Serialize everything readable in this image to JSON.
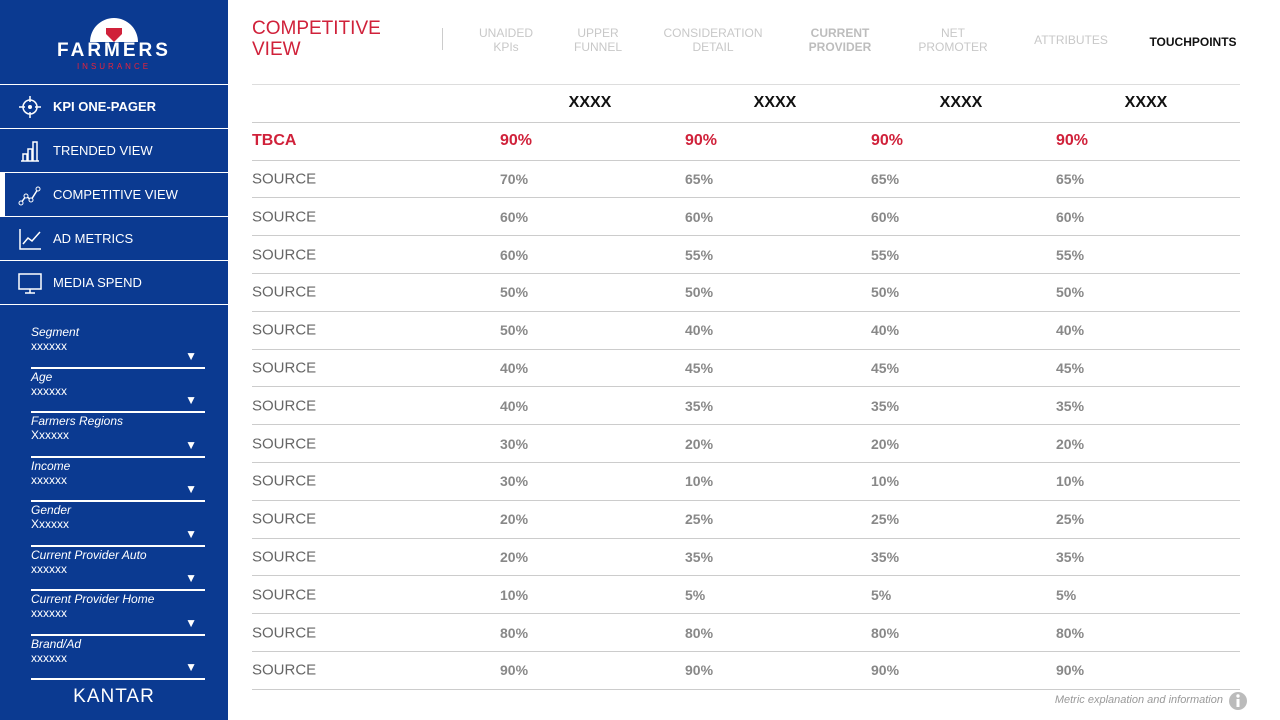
{
  "sidebar": {
    "brand": "FARMERS",
    "brand_sub": "INSURANCE",
    "nav": [
      "KPI ONE-PAGER",
      "TRENDED VIEW",
      "COMPETITIVE VIEW",
      "AD METRICS",
      "MEDIA SPEND"
    ],
    "filters": [
      {
        "label": "Segment",
        "value": "xxxxxx"
      },
      {
        "label": "Age",
        "value": "xxxxxx"
      },
      {
        "label": "Farmers Regions",
        "value": "Xxxxxx"
      },
      {
        "label": "Income",
        "value": "xxxxxx"
      },
      {
        "label": "Gender",
        "value": "Xxxxxx"
      },
      {
        "label": "Current Provider Auto",
        "value": "xxxxxx"
      },
      {
        "label": "Current Provider Home",
        "value": "xxxxxx"
      },
      {
        "label": "Brand/Ad",
        "value": "xxxxxx"
      }
    ],
    "footer": "KANTAR"
  },
  "header": {
    "title": "COMPETITIVE VIEW",
    "tabs": [
      "UNAIDED KPIs",
      "UPPER FUNNEL",
      "CONSIDERATION DETAIL",
      "CURRENT PROVIDER",
      "NET PROMOTER",
      "ATTRIBUTES",
      "TOUCHPOINTS"
    ]
  },
  "table": {
    "columns": [
      "XXXX",
      "XXXX",
      "XXXX",
      "XXXX"
    ],
    "rows": [
      {
        "label": "TBCA",
        "values": [
          "90%",
          "90%",
          "90%",
          "90%"
        ]
      },
      {
        "label": "SOURCE",
        "values": [
          "70%",
          "65%",
          "65%",
          "65%"
        ]
      },
      {
        "label": "SOURCE",
        "values": [
          "60%",
          "60%",
          "60%",
          "60%"
        ]
      },
      {
        "label": "SOURCE",
        "values": [
          "60%",
          "55%",
          "55%",
          "55%"
        ]
      },
      {
        "label": "SOURCE",
        "values": [
          "50%",
          "50%",
          "50%",
          "50%"
        ]
      },
      {
        "label": "SOURCE",
        "values": [
          "50%",
          "40%",
          "40%",
          "40%"
        ]
      },
      {
        "label": "SOURCE",
        "values": [
          "40%",
          "45%",
          "45%",
          "45%"
        ]
      },
      {
        "label": "SOURCE",
        "values": [
          "40%",
          "35%",
          "35%",
          "35%"
        ]
      },
      {
        "label": "SOURCE",
        "values": [
          "30%",
          "20%",
          "20%",
          "20%"
        ]
      },
      {
        "label": "SOURCE",
        "values": [
          "30%",
          "10%",
          "10%",
          "10%"
        ]
      },
      {
        "label": "SOURCE",
        "values": [
          "20%",
          "25%",
          "25%",
          "25%"
        ]
      },
      {
        "label": "SOURCE",
        "values": [
          "20%",
          "35%",
          "35%",
          "35%"
        ]
      },
      {
        "label": "SOURCE",
        "values": [
          "10%",
          "5%",
          "5%",
          "5%"
        ]
      },
      {
        "label": "SOURCE",
        "values": [
          "80%",
          "80%",
          "80%",
          "80%"
        ]
      },
      {
        "label": "SOURCE",
        "values": [
          "90%",
          "90%",
          "90%",
          "90%"
        ]
      }
    ]
  },
  "footnote": "Metric explanation and information"
}
